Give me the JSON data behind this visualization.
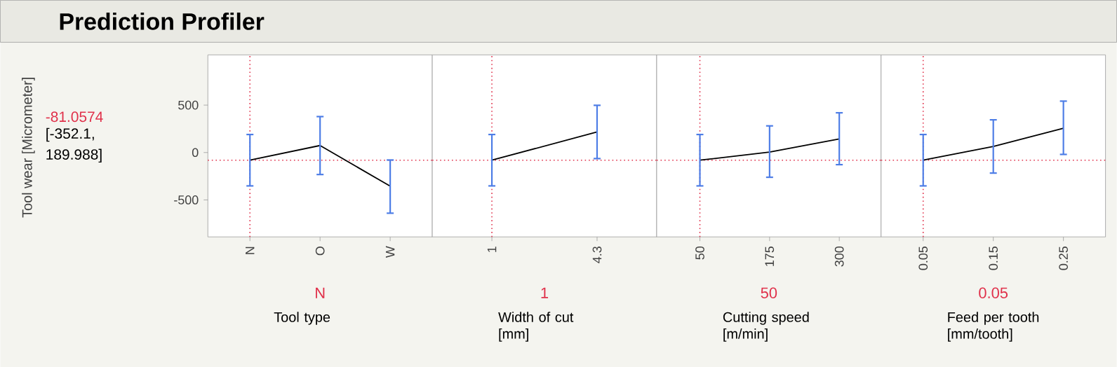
{
  "chart_data": [
    {
      "type": "line",
      "title": "Prediction Profiler",
      "ylabel": "Tool wear [Micrometer]",
      "xlabel": "Tool type",
      "categories": [
        "N",
        "O",
        "W"
      ],
      "series": [
        {
          "color": "#000000",
          "values": [
            -81.0574,
            74,
            -355
          ],
          "errors": [
            [
              -352.1,
              189.988
            ],
            [
              -232,
              379
            ],
            [
              -640,
              -79
            ]
          ]
        }
      ],
      "ylim": [
        -890,
        1030
      ],
      "yticks": [
        -500,
        0,
        500
      ],
      "ref_lines": [
        {
          "axis": "x",
          "value": "N",
          "label": "N",
          "color": "#e0304a",
          "line_style": "dotted"
        },
        {
          "axis": "y",
          "value": -81.0574,
          "label": "-81.0574",
          "color": "#e0304a",
          "line_style": "dotted"
        }
      ],
      "annotations": [
        "[-352.1, 189.988]"
      ],
      "marker": "none",
      "line_style": "solid"
    },
    {
      "type": "line",
      "xlabel": "Width of cut [mm]",
      "x": [
        1,
        4.3
      ],
      "series": [
        {
          "color": "#000000",
          "values": [
            -81.0574,
            217
          ],
          "errors": [
            [
              -352.1,
              189.988
            ],
            [
              -64,
              498
            ]
          ]
        }
      ],
      "xlim": [
        -0.87,
        6.17
      ],
      "xticks": [
        1,
        4.3
      ],
      "ylim": [
        -890,
        1030
      ],
      "tick_labels": "x",
      "ref_lines": [
        {
          "axis": "x",
          "value": 1,
          "label": "1",
          "color": "#e0304a",
          "line_style": "dotted"
        },
        {
          "axis": "y",
          "value": -81.0574,
          "color": "#e0304a",
          "line_style": "dotted"
        }
      ],
      "marker": "none",
      "line_style": "solid"
    },
    {
      "type": "line",
      "xlabel": "Cutting speed [m/min]",
      "x": [
        50,
        175,
        300
      ],
      "series": [
        {
          "color": "#000000",
          "values": [
            -81.0574,
            5,
            143
          ],
          "errors": [
            [
              -352.1,
              189.988
            ],
            [
              -261,
              281
            ],
            [
              -128,
              419
            ]
          ]
        }
      ],
      "xlim": [
        -27.5,
        375
      ],
      "xticks": [
        50,
        175,
        300
      ],
      "ylim": [
        -890,
        1030
      ],
      "tick_labels": "x",
      "ref_lines": [
        {
          "axis": "x",
          "value": 50,
          "label": "50",
          "color": "#e0304a",
          "line_style": "dotted"
        },
        {
          "axis": "y",
          "value": -81.0574,
          "color": "#e0304a",
          "line_style": "dotted"
        }
      ],
      "marker": "none",
      "line_style": "solid"
    },
    {
      "type": "line",
      "xlabel": "Feed per tooth [mm/tooth]",
      "x": [
        0.05,
        0.15,
        0.25
      ],
      "series": [
        {
          "color": "#000000",
          "values": [
            -81.0574,
            64,
            256
          ],
          "errors": [
            [
              -352.1,
              189.988
            ],
            [
              -217,
              345
            ],
            [
              -20,
              542
            ]
          ]
        }
      ],
      "xlim": [
        -0.01,
        0.31
      ],
      "xticks": [
        0.05,
        0.15,
        0.25
      ],
      "ylim": [
        -890,
        1030
      ],
      "tick_labels": "x",
      "ref_lines": [
        {
          "axis": "x",
          "value": 0.05,
          "label": "0.05",
          "color": "#e0304a",
          "line_style": "dotted"
        },
        {
          "axis": "y",
          "value": -81.0574,
          "color": "#e0304a",
          "line_style": "dotted"
        }
      ],
      "marker": "none",
      "line_style": "solid"
    }
  ]
}
